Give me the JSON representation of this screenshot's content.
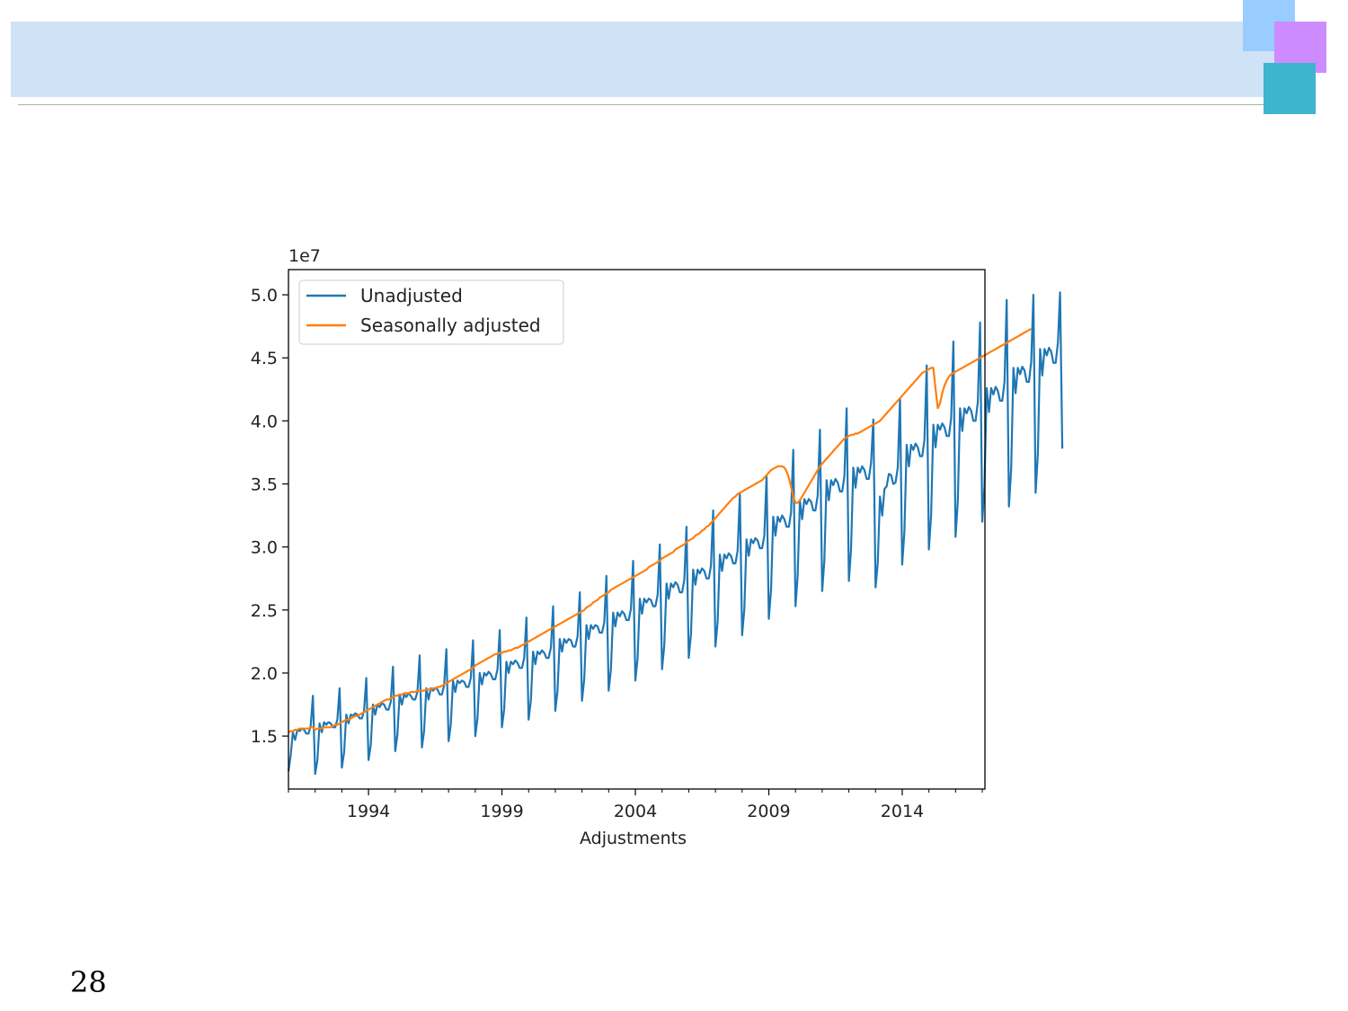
{
  "slide": {
    "page_number": "28",
    "colors": {
      "header_band": "#cfe2f6",
      "deco_light_blue": "#99ccff",
      "deco_purple": "#cc8cff",
      "deco_teal": "#3fb4cf"
    }
  },
  "chart_data": {
    "type": "line",
    "title": "",
    "xlabel": "Adjustments",
    "ylabel": "",
    "y_offset_label": "1e7",
    "xlim": [
      1991.0,
      2017.1
    ],
    "ylim": [
      1.08,
      5.2
    ],
    "x_ticks": [
      1994,
      1999,
      2004,
      2009,
      2014
    ],
    "x_tick_labels": [
      "1994",
      "1999",
      "2004",
      "2009",
      "2014"
    ],
    "y_ticks": [
      1.5,
      2.0,
      2.5,
      3.0,
      3.5,
      4.0,
      4.5,
      5.0
    ],
    "y_tick_labels": [
      "1.5",
      "2.0",
      "2.5",
      "3.0",
      "3.5",
      "4.0",
      "4.5",
      "5.0"
    ],
    "grid": false,
    "legend": "upper-left",
    "series": [
      {
        "name": "Unadjusted",
        "color": "#1f77b4",
        "x_start": 1991.0,
        "x_step": 0.083333,
        "values": [
          1.22,
          1.35,
          1.53,
          1.47,
          1.55,
          1.54,
          1.56,
          1.55,
          1.52,
          1.52,
          1.58,
          1.82,
          1.2,
          1.31,
          1.6,
          1.53,
          1.61,
          1.59,
          1.61,
          1.6,
          1.57,
          1.57,
          1.63,
          1.88,
          1.25,
          1.37,
          1.67,
          1.6,
          1.67,
          1.66,
          1.68,
          1.67,
          1.64,
          1.64,
          1.7,
          1.96,
          1.31,
          1.43,
          1.75,
          1.67,
          1.75,
          1.73,
          1.76,
          1.75,
          1.71,
          1.71,
          1.77,
          2.05,
          1.38,
          1.51,
          1.83,
          1.75,
          1.83,
          1.81,
          1.84,
          1.82,
          1.79,
          1.79,
          1.85,
          2.14,
          1.41,
          1.54,
          1.88,
          1.79,
          1.88,
          1.86,
          1.88,
          1.87,
          1.83,
          1.83,
          1.9,
          2.19,
          1.46,
          1.59,
          1.94,
          1.85,
          1.94,
          1.92,
          1.94,
          1.93,
          1.89,
          1.89,
          1.96,
          2.26,
          1.5,
          1.64,
          2.0,
          1.91,
          2.0,
          1.98,
          2.01,
          1.99,
          1.95,
          1.95,
          2.03,
          2.34,
          1.57,
          1.71,
          2.09,
          2.0,
          2.09,
          2.07,
          2.1,
          2.08,
          2.04,
          2.04,
          2.12,
          2.44,
          1.63,
          1.78,
          2.17,
          2.07,
          2.17,
          2.15,
          2.18,
          2.16,
          2.12,
          2.12,
          2.2,
          2.53,
          1.7,
          1.86,
          2.27,
          2.17,
          2.27,
          2.24,
          2.27,
          2.26,
          2.21,
          2.21,
          2.29,
          2.64,
          1.78,
          1.95,
          2.38,
          2.27,
          2.38,
          2.35,
          2.38,
          2.37,
          2.32,
          2.32,
          2.4,
          2.77,
          1.86,
          2.03,
          2.48,
          2.37,
          2.48,
          2.45,
          2.49,
          2.47,
          2.42,
          2.42,
          2.51,
          2.89,
          1.94,
          2.12,
          2.59,
          2.47,
          2.59,
          2.56,
          2.59,
          2.58,
          2.53,
          2.53,
          2.62,
          3.02,
          2.03,
          2.22,
          2.71,
          2.59,
          2.71,
          2.68,
          2.72,
          2.7,
          2.64,
          2.64,
          2.74,
          3.16,
          2.12,
          2.31,
          2.82,
          2.7,
          2.82,
          2.79,
          2.83,
          2.81,
          2.75,
          2.75,
          2.85,
          3.29,
          2.21,
          2.41,
          2.94,
          2.81,
          2.94,
          2.91,
          2.95,
          2.93,
          2.87,
          2.87,
          2.97,
          3.42,
          2.3,
          2.51,
          3.06,
          2.93,
          3.06,
          3.03,
          3.07,
          3.05,
          2.99,
          2.99,
          3.09,
          3.56,
          2.43,
          2.66,
          3.24,
          3.09,
          3.24,
          3.2,
          3.25,
          3.22,
          3.16,
          3.16,
          3.27,
          3.77,
          2.53,
          2.77,
          3.37,
          3.22,
          3.38,
          3.34,
          3.38,
          3.36,
          3.29,
          3.29,
          3.41,
          3.93,
          2.65,
          2.89,
          3.53,
          3.37,
          3.53,
          3.49,
          3.54,
          3.51,
          3.44,
          3.44,
          3.56,
          4.1,
          2.73,
          2.98,
          3.63,
          3.47,
          3.63,
          3.59,
          3.64,
          3.61,
          3.54,
          3.54,
          3.67,
          4.01,
          2.68,
          2.87,
          3.4,
          3.25,
          3.46,
          3.48,
          3.58,
          3.57,
          3.5,
          3.51,
          3.63,
          4.18,
          2.86,
          3.12,
          3.81,
          3.64,
          3.81,
          3.77,
          3.82,
          3.79,
          3.72,
          3.72,
          3.85,
          4.44,
          2.98,
          3.25,
          3.97,
          3.79,
          3.97,
          3.93,
          3.98,
          3.95,
          3.88,
          3.88,
          4.02,
          4.63,
          3.08,
          3.36,
          4.1,
          3.92,
          4.1,
          4.06,
          4.11,
          4.08,
          4.0,
          4.0,
          4.15,
          4.78,
          3.2,
          3.49,
          4.26,
          4.07,
          4.26,
          4.21,
          4.27,
          4.24,
          4.16,
          4.16,
          4.31,
          4.96,
          3.32,
          3.62,
          4.42,
          4.22,
          4.42,
          4.37,
          4.43,
          4.4,
          4.31,
          4.31,
          4.47,
          5.0,
          3.43,
          3.74,
          4.57,
          4.36,
          4.57,
          4.52,
          4.58,
          4.55,
          4.46,
          4.46,
          4.62,
          5.02,
          3.78
        ]
      },
      {
        "name": "Seasonally adjusted",
        "color": "#ff7f0e",
        "x_start": 1991.0,
        "x_step": 0.083333,
        "values": [
          1.53,
          1.54,
          1.54,
          1.55,
          1.55,
          1.56,
          1.56,
          1.56,
          1.56,
          1.56,
          1.57,
          1.57,
          1.55,
          1.56,
          1.56,
          1.56,
          1.57,
          1.57,
          1.57,
          1.57,
          1.58,
          1.59,
          1.59,
          1.6,
          1.61,
          1.62,
          1.63,
          1.63,
          1.64,
          1.65,
          1.66,
          1.66,
          1.67,
          1.68,
          1.69,
          1.7,
          1.71,
          1.72,
          1.73,
          1.74,
          1.75,
          1.76,
          1.77,
          1.78,
          1.79,
          1.79,
          1.8,
          1.81,
          1.82,
          1.82,
          1.83,
          1.83,
          1.84,
          1.84,
          1.84,
          1.85,
          1.85,
          1.85,
          1.86,
          1.86,
          1.86,
          1.86,
          1.87,
          1.87,
          1.87,
          1.88,
          1.88,
          1.89,
          1.89,
          1.9,
          1.91,
          1.92,
          1.93,
          1.94,
          1.95,
          1.96,
          1.97,
          1.98,
          1.99,
          2.0,
          2.01,
          2.02,
          2.03,
          2.04,
          2.06,
          2.07,
          2.08,
          2.09,
          2.1,
          2.11,
          2.12,
          2.13,
          2.14,
          2.15,
          2.15,
          2.16,
          2.16,
          2.17,
          2.17,
          2.18,
          2.18,
          2.19,
          2.2,
          2.2,
          2.21,
          2.22,
          2.23,
          2.24,
          2.25,
          2.26,
          2.27,
          2.28,
          2.29,
          2.3,
          2.31,
          2.32,
          2.33,
          2.34,
          2.35,
          2.36,
          2.37,
          2.38,
          2.39,
          2.4,
          2.41,
          2.42,
          2.43,
          2.44,
          2.45,
          2.46,
          2.47,
          2.48,
          2.49,
          2.5,
          2.52,
          2.53,
          2.54,
          2.56,
          2.57,
          2.58,
          2.6,
          2.61,
          2.62,
          2.63,
          2.64,
          2.66,
          2.67,
          2.68,
          2.69,
          2.7,
          2.71,
          2.72,
          2.73,
          2.74,
          2.75,
          2.76,
          2.77,
          2.78,
          2.79,
          2.8,
          2.81,
          2.82,
          2.84,
          2.85,
          2.86,
          2.87,
          2.88,
          2.89,
          2.91,
          2.92,
          2.93,
          2.94,
          2.95,
          2.96,
          2.98,
          2.99,
          3.0,
          3.01,
          3.02,
          3.04,
          3.05,
          3.06,
          3.07,
          3.09,
          3.1,
          3.11,
          3.13,
          3.14,
          3.16,
          3.17,
          3.19,
          3.21,
          3.23,
          3.25,
          3.27,
          3.29,
          3.31,
          3.33,
          3.35,
          3.37,
          3.39,
          3.4,
          3.42,
          3.43,
          3.44,
          3.45,
          3.46,
          3.47,
          3.48,
          3.49,
          3.5,
          3.51,
          3.52,
          3.53,
          3.55,
          3.57,
          3.59,
          3.61,
          3.62,
          3.63,
          3.64,
          3.64,
          3.64,
          3.63,
          3.6,
          3.55,
          3.48,
          3.4,
          3.35,
          3.35,
          3.37,
          3.4,
          3.43,
          3.46,
          3.49,
          3.52,
          3.55,
          3.58,
          3.61,
          3.64,
          3.66,
          3.68,
          3.7,
          3.72,
          3.74,
          3.76,
          3.78,
          3.8,
          3.82,
          3.84,
          3.86,
          3.87,
          3.88,
          3.89,
          3.89,
          3.9,
          3.9,
          3.91,
          3.92,
          3.93,
          3.94,
          3.95,
          3.96,
          3.97,
          3.98,
          3.99,
          4.0,
          4.02,
          4.04,
          4.06,
          4.08,
          4.1,
          4.12,
          4.14,
          4.16,
          4.18,
          4.2,
          4.22,
          4.24,
          4.26,
          4.28,
          4.3,
          4.32,
          4.34,
          4.36,
          4.38,
          4.39,
          4.4,
          4.41,
          4.42,
          4.42,
          4.25,
          4.1,
          4.14,
          4.22,
          4.28,
          4.32,
          4.35,
          4.37,
          4.38,
          4.39,
          4.4,
          4.41,
          4.42,
          4.43,
          4.44,
          4.45,
          4.46,
          4.47,
          4.48,
          4.49,
          4.5,
          4.51,
          4.52,
          4.53,
          4.54,
          4.55,
          4.56,
          4.57,
          4.58,
          4.59,
          4.6,
          4.61,
          4.62,
          4.63,
          4.64,
          4.65,
          4.66,
          4.67,
          4.68,
          4.69,
          4.7,
          4.71,
          4.72,
          4.73
        ]
      }
    ]
  }
}
